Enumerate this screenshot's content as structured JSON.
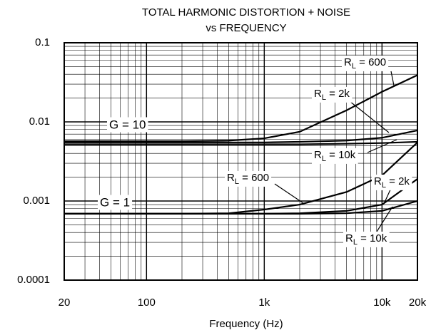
{
  "chart_data": {
    "type": "line",
    "title": "TOTAL HARMONIC DISTORTION + NOISE",
    "subtitle": "vs FREQUENCY",
    "x_label": "Frequency (Hz)",
    "x": [
      20,
      50,
      100,
      200,
      500,
      1000,
      2000,
      5000,
      10000,
      20000
    ],
    "xlim": [
      20,
      20000
    ],
    "xticks": [
      20,
      100,
      {
        "value": 1000,
        "label": "1k"
      },
      {
        "value": 10000,
        "label": "10k"
      },
      {
        "value": 20000,
        "label": "20k"
      }
    ],
    "ylim": [
      0.0001,
      0.1
    ],
    "yticks": [
      0.0001,
      0.001,
      0.01,
      0.1
    ],
    "log_x": true,
    "log_y": true,
    "grid": true,
    "series": [
      {
        "color": "#000000",
        "values": [
          0.0057,
          0.0057,
          0.0057,
          0.0057,
          0.0058,
          0.0062,
          0.0075,
          0.014,
          0.024,
          0.039
        ]
      },
      {
        "color": "#000000",
        "values": [
          0.0055,
          0.0055,
          0.0055,
          0.0055,
          0.0055,
          0.0055,
          0.0056,
          0.0058,
          0.0063,
          0.0078
        ]
      },
      {
        "color": "#000000",
        "values": [
          0.0052,
          0.0052,
          0.0052,
          0.0052,
          0.0052,
          0.0052,
          0.0052,
          0.0053,
          0.0054,
          0.0056
        ]
      },
      {
        "color": "#000000",
        "values": [
          0.00069,
          0.00069,
          0.00069,
          0.00069,
          0.0007,
          0.00078,
          0.0009,
          0.0013,
          0.0021,
          0.0055
        ]
      },
      {
        "color": "#000000",
        "values": [
          0.00069,
          0.00069,
          0.00069,
          0.00069,
          0.00069,
          0.00069,
          0.0007,
          0.00075,
          0.0009,
          0.0019
        ]
      },
      {
        "color": "#000000",
        "values": [
          0.00069,
          0.00069,
          0.00069,
          0.00069,
          0.00069,
          0.00069,
          0.00069,
          0.0007,
          0.00075,
          0.001
        ]
      }
    ],
    "annotations": [
      {
        "text": "G = 10"
      },
      {
        "text": "G = 1"
      },
      {
        "main": "R",
        "sub": "L",
        "rest": " = 600"
      },
      {
        "main": "R",
        "sub": "L",
        "rest": " = 2k"
      },
      {
        "main": "R",
        "sub": "L",
        "rest": " = 10k"
      },
      {
        "main": "R",
        "sub": "L",
        "rest": " = 600"
      },
      {
        "main": "R",
        "sub": "L",
        "rest": " = 2k"
      },
      {
        "main": "R",
        "sub": "L",
        "rest": " = 10k"
      }
    ]
  }
}
